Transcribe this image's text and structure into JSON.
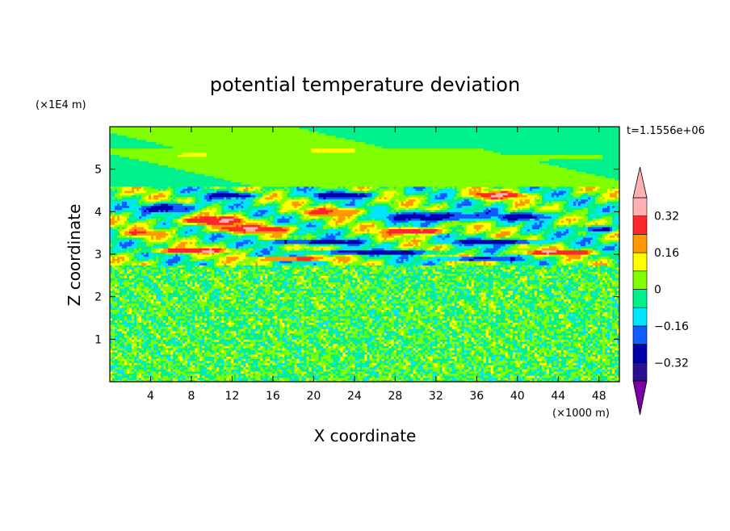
{
  "chart_data": {
    "type": "heatmap",
    "title": "potential temperature deviation",
    "xlabel": "X coordinate",
    "ylabel": "Z coordinate",
    "x_scale_label": "(×1000 m)",
    "y_scale_label": "(×1E4 m)",
    "time_label": "t=1.1556e+06",
    "xlim": [
      0,
      50
    ],
    "ylim": [
      0,
      6
    ],
    "x_ticks": [
      4,
      8,
      12,
      16,
      20,
      24,
      28,
      32,
      36,
      40,
      44,
      48
    ],
    "y_ticks": [
      1,
      2,
      3,
      4,
      5
    ],
    "x_tick_labels": [
      "4",
      "8",
      "12",
      "16",
      "20",
      "24",
      "28",
      "32",
      "36",
      "40",
      "44",
      "48"
    ],
    "y_tick_labels": [
      "1",
      "2",
      "3",
      "4",
      "5"
    ],
    "colorbar": {
      "levels": [
        -0.4,
        -0.32,
        -0.24,
        -0.16,
        -0.08,
        0,
        0.08,
        0.16,
        0.24,
        0.32,
        0.4
      ],
      "colors": [
        "#7b00a6",
        "#2a0f8e",
        "#0000a8",
        "#0f5cff",
        "#00e6ff",
        "#00f08c",
        "#80ff00",
        "#ffff00",
        "#ff9900",
        "#ff2828",
        "#ffb0b0"
      ],
      "tick_values": [
        0.32,
        0.16,
        0,
        -0.16,
        -0.32
      ],
      "tick_labels": [
        "0.32",
        "0.16",
        "0",
        "−0.16",
        "−0.32"
      ],
      "extend": "both"
    },
    "field_description": {
      "lower_layer": "small-scale noisy mix of values near 0 between z=0 and z~2.8",
      "middle_layer": "strong banded structures between z~2.8 and z~4.5",
      "upper_layer": "smooth near-zero fields between z~4.5 and z=6"
    },
    "blobs": [
      {
        "cx": 12,
        "cy": 4.4,
        "rx": 3.0,
        "ry": 0.1,
        "level": -0.36
      },
      {
        "cx": 23,
        "cy": 4.4,
        "rx": 4.0,
        "ry": 0.1,
        "level": -0.36
      },
      {
        "cx": 38,
        "cy": 4.4,
        "rx": 3.5,
        "ry": 0.1,
        "level": 0.38
      },
      {
        "cx": 6,
        "cy": 4.1,
        "rx": 3.5,
        "ry": 0.14,
        "level": -0.36
      },
      {
        "cx": 10,
        "cy": 3.8,
        "rx": 4.5,
        "ry": 0.12,
        "level": 0.38
      },
      {
        "cx": 22,
        "cy": 4.0,
        "rx": 4.0,
        "ry": 0.12,
        "level": 0.3
      },
      {
        "cx": 32,
        "cy": 3.9,
        "rx": 6.0,
        "ry": 0.15,
        "level": -0.36
      },
      {
        "cx": 41,
        "cy": 3.9,
        "rx": 3.0,
        "ry": 0.1,
        "level": -0.36
      },
      {
        "cx": 45,
        "cy": 4.0,
        "rx": 3.5,
        "ry": 0.1,
        "level": 0.0
      },
      {
        "cx": 14,
        "cy": 3.6,
        "rx": 5.0,
        "ry": 0.1,
        "level": 0.38
      },
      {
        "cx": 30,
        "cy": 3.55,
        "rx": 4.0,
        "ry": 0.1,
        "level": 0.38
      },
      {
        "cx": 20,
        "cy": 3.3,
        "rx": 6.0,
        "ry": 0.08,
        "level": -0.36
      },
      {
        "cx": 38,
        "cy": 3.3,
        "rx": 6.0,
        "ry": 0.08,
        "level": -0.36
      },
      {
        "cx": 8,
        "cy": 3.1,
        "rx": 5.0,
        "ry": 0.07,
        "level": 0.38
      },
      {
        "cx": 26,
        "cy": 3.05,
        "rx": 8.0,
        "ry": 0.07,
        "level": -0.36
      },
      {
        "cx": 44,
        "cy": 3.05,
        "rx": 5.0,
        "ry": 0.07,
        "level": 0.38
      },
      {
        "cx": 18,
        "cy": 2.9,
        "rx": 5.0,
        "ry": 0.05,
        "level": 0.38
      },
      {
        "cx": 36,
        "cy": 2.9,
        "rx": 5.0,
        "ry": 0.05,
        "level": -0.36
      },
      {
        "cx": 48,
        "cy": 3.6,
        "rx": 2.0,
        "ry": 0.1,
        "level": -0.36
      },
      {
        "cx": 3,
        "cy": 3.5,
        "rx": 2.0,
        "ry": 0.1,
        "level": 0.3
      },
      {
        "cx": 8,
        "cy": 5.35,
        "rx": 3.0,
        "ry": 0.06,
        "level": 0.12
      },
      {
        "cx": 22,
        "cy": 5.45,
        "rx": 3.5,
        "ry": 0.06,
        "level": 0.12
      },
      {
        "cx": 44,
        "cy": 5.3,
        "rx": 4.0,
        "ry": 0.06,
        "level": 0.1
      },
      {
        "cx": 5,
        "cy": 5.6,
        "rx": 6.0,
        "ry": 0.2,
        "level": 0.0
      }
    ]
  }
}
